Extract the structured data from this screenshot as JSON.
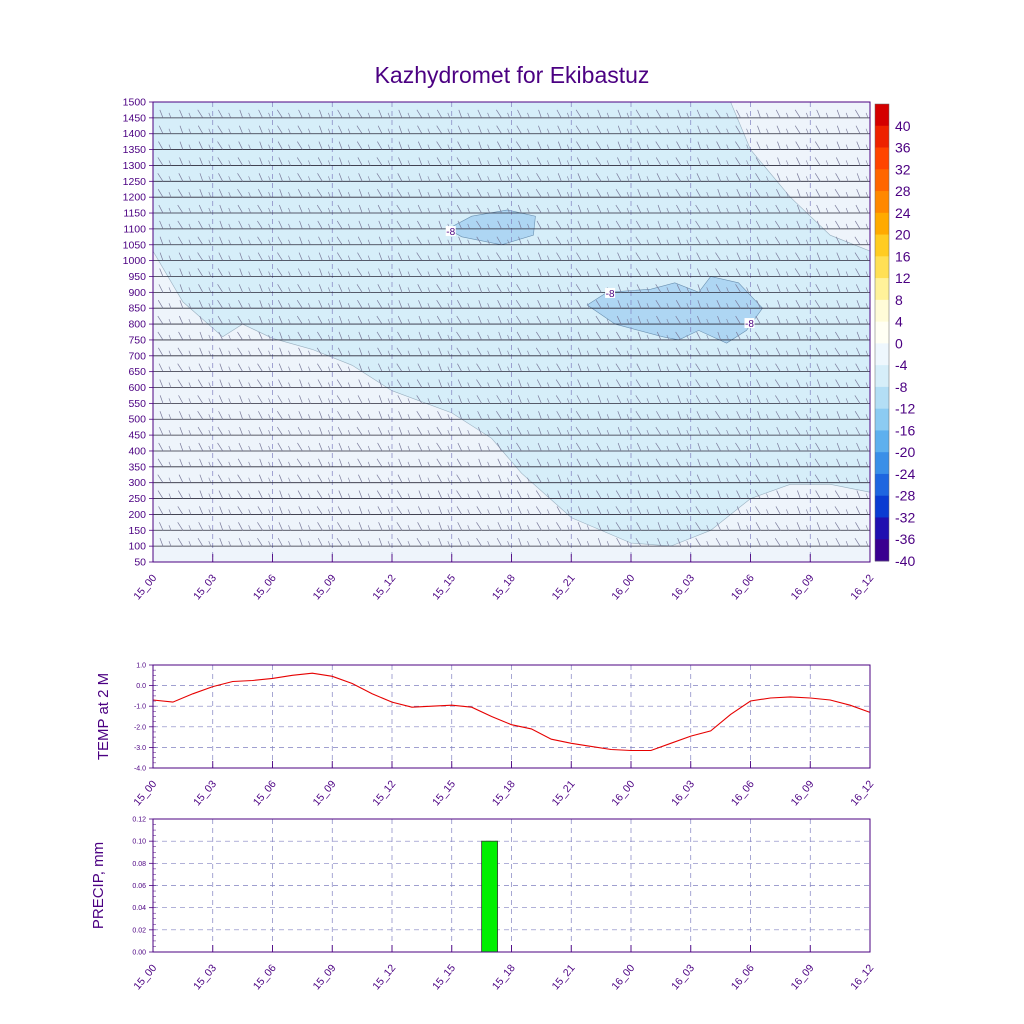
{
  "title": "Kazhydromet for Ekibastuz",
  "colors": {
    "axis": "#4b0082",
    "contour_fill_light": "#eef4fb",
    "contour_fill_mid": "#d6eef9",
    "contour_fill_dark": "#aed6f3",
    "temp_line": "#e60000",
    "precip_bar": "#00f000",
    "barb": "#7a7a9a"
  },
  "time_ticks": [
    "15_00",
    "15_03",
    "15_06",
    "15_09",
    "15_12",
    "15_15",
    "15_18",
    "15_21",
    "16_00",
    "16_03",
    "16_06",
    "16_09",
    "16_12"
  ],
  "chart_data": [
    {
      "type": "heatmap",
      "name": "vertical-section",
      "y_ticks": [
        1500,
        1450,
        1400,
        1350,
        1300,
        1250,
        1200,
        1150,
        1100,
        1050,
        1000,
        950,
        900,
        850,
        800,
        750,
        700,
        650,
        600,
        550,
        500,
        450,
        400,
        350,
        300,
        250,
        200,
        150,
        100,
        50
      ],
      "ylim": [
        50,
        1500
      ],
      "contour_labels": [
        "-8",
        "-8",
        "-8"
      ],
      "colorbar_labels": [
        "40",
        "36",
        "32",
        "28",
        "24",
        "20",
        "16",
        "12",
        "8",
        "4",
        "0",
        "-4",
        "-8",
        "-12",
        "-16",
        "-20",
        "-24",
        "-28",
        "-32",
        "-36",
        "-40"
      ],
      "colorbar_colors": [
        "#d40000",
        "#ee2200",
        "#ff4400",
        "#ff6600",
        "#ff8800",
        "#ffaa00",
        "#ffcc22",
        "#ffe055",
        "#fff29a",
        "#fffcd8",
        "#fffff4",
        "#eef7fd",
        "#d6eef9",
        "#b3def5",
        "#8ccbf2",
        "#5eb0ee",
        "#3a8fe8",
        "#1e66e0",
        "#0a3cd2",
        "#2010b0",
        "#3a0090"
      ],
      "grid": true
    },
    {
      "type": "line",
      "name": "temp",
      "ylabel": "TEMP at 2 M",
      "y_ticks": [
        "1.0",
        "0.0",
        "-1.0",
        "-2.0",
        "-3.0",
        "-4.0"
      ],
      "ylim": [
        -4.0,
        1.0
      ],
      "x_hours": [
        0,
        1,
        2,
        3,
        4,
        5,
        6,
        7,
        8,
        9,
        10,
        11,
        12,
        13,
        14,
        15,
        16,
        17,
        18,
        19,
        20,
        21,
        22,
        23,
        24,
        25,
        26,
        27,
        28,
        29,
        30,
        31,
        32,
        33,
        34,
        35,
        36
      ],
      "values": [
        -0.7,
        -0.8,
        -0.4,
        -0.05,
        0.2,
        0.25,
        0.35,
        0.5,
        0.6,
        0.45,
        0.1,
        -0.4,
        -0.8,
        -1.05,
        -1.0,
        -0.95,
        -1.05,
        -1.5,
        -1.9,
        -2.1,
        -2.6,
        -2.8,
        -2.95,
        -3.1,
        -3.15,
        -3.15,
        -2.8,
        -2.45,
        -2.2,
        -1.4,
        -0.75,
        -0.6,
        -0.55,
        -0.6,
        -0.7,
        -0.95,
        -1.3
      ],
      "grid": true
    },
    {
      "type": "bar",
      "name": "precip",
      "ylabel": "PRECIP, mm",
      "y_ticks": [
        "0.12",
        "0.10",
        "0.08",
        "0.06",
        "0.04",
        "0.02",
        "0.00"
      ],
      "ylim": [
        0,
        0.12
      ],
      "bars": [
        {
          "x_hour_start": 16.5,
          "x_hour_end": 17.3,
          "value": 0.1
        }
      ],
      "grid": true
    }
  ]
}
